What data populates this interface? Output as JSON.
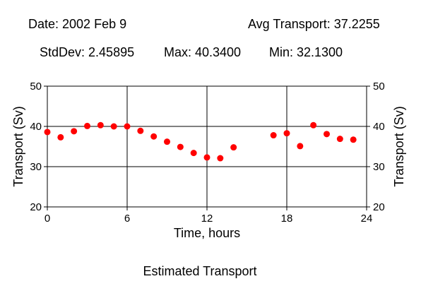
{
  "header": {
    "date": "Date: 2002 Feb 9",
    "avg": "Avg Transport: 37.2255",
    "stddev": "StdDev: 2.45895",
    "max": "Max: 40.3400",
    "min": "Min: 32.1300"
  },
  "footer": {
    "caption": "Estimated Transport"
  },
  "chart_data": {
    "type": "scatter",
    "title": "",
    "xlabel": "Time, hours",
    "ylabel": "Transport (Sv)",
    "ylabel_right": "Transport (Sv)",
    "xlim": [
      0,
      24
    ],
    "ylim": [
      20,
      50
    ],
    "xticks": [
      0,
      6,
      12,
      18,
      24
    ],
    "yticks": [
      20,
      30,
      40,
      50
    ],
    "grid": true,
    "marker_color": "#ff0000",
    "x": [
      0,
      1,
      2,
      3,
      4,
      5,
      6,
      7,
      8,
      9,
      10,
      11,
      12,
      13,
      14,
      17,
      18,
      19,
      20,
      21,
      22,
      23
    ],
    "y": [
      38.6,
      37.3,
      38.8,
      40.1,
      40.3,
      40.0,
      40.0,
      38.9,
      37.5,
      36.2,
      34.9,
      33.4,
      32.3,
      32.1,
      34.8,
      37.8,
      38.3,
      35.1,
      40.3,
      38.1,
      36.9,
      36.7
    ]
  }
}
